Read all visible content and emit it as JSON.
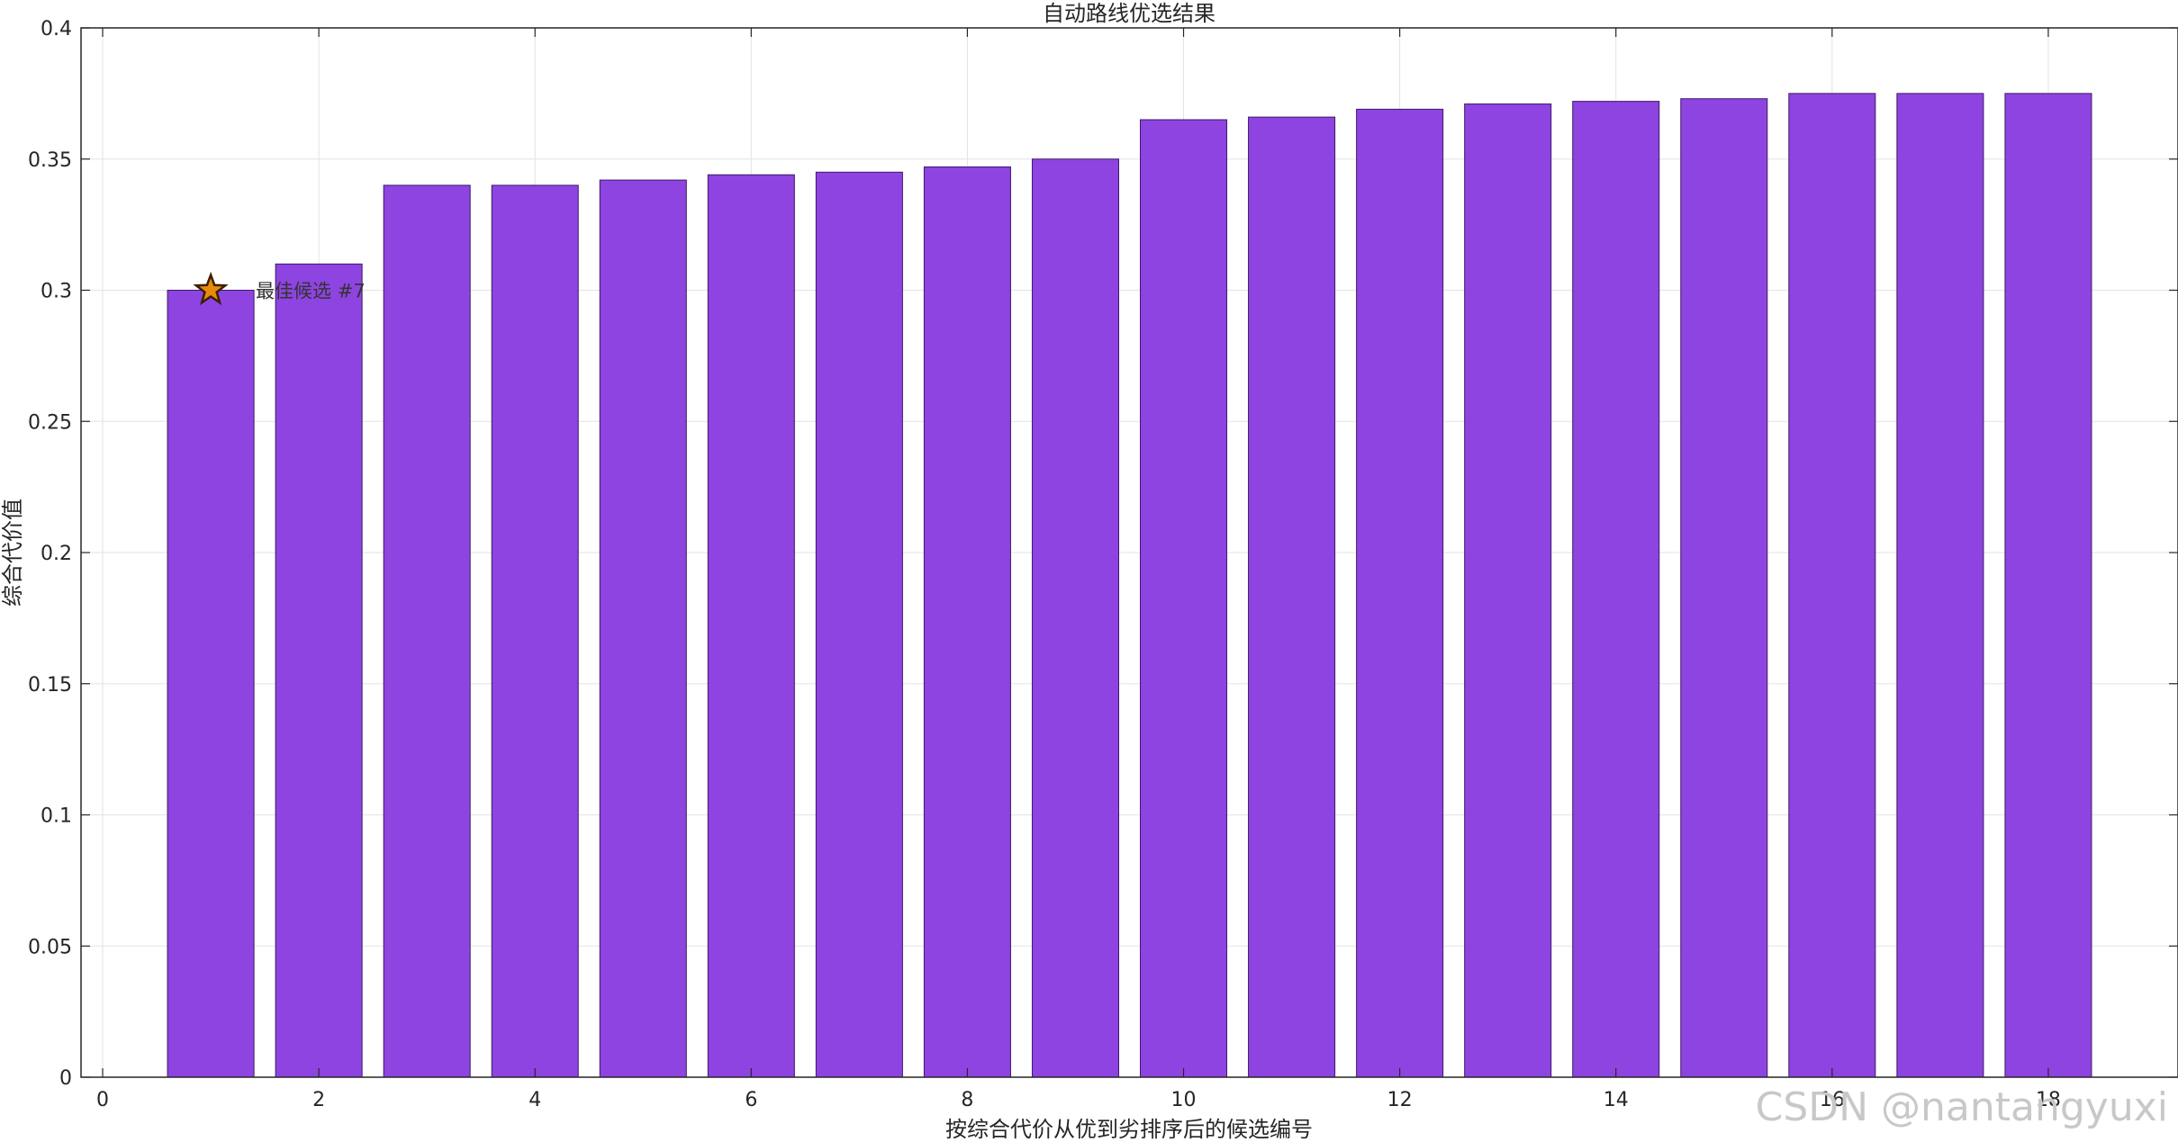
{
  "chart_data": {
    "type": "bar",
    "title": "自动路线优选结果",
    "xlabel": "按综合代价从优到劣排序后的候选编号",
    "ylabel": "综合代价值",
    "x": [
      1,
      2,
      3,
      4,
      5,
      6,
      7,
      8,
      9,
      10,
      11,
      12,
      13,
      14,
      15,
      16,
      17,
      18
    ],
    "values": [
      0.3,
      0.31,
      0.34,
      0.34,
      0.342,
      0.344,
      0.345,
      0.347,
      0.35,
      0.365,
      0.366,
      0.369,
      0.371,
      0.372,
      0.373,
      0.375,
      0.375,
      0.375
    ],
    "xlim": [
      -0.2,
      19.2
    ],
    "ylim": [
      0,
      0.4
    ],
    "xticks": [
      "0",
      "2",
      "4",
      "6",
      "8",
      "10",
      "12",
      "14",
      "16",
      "18"
    ],
    "yticks": [
      "0",
      "0.05",
      "0.1",
      "0.15",
      "0.2",
      "0.25",
      "0.3",
      "0.35",
      "0.4"
    ],
    "grid": true,
    "bar_color": "#8e44e0",
    "bar_edge_color": "#3d1a66",
    "marker": {
      "x": 1,
      "y": 0.3,
      "symbol": "star",
      "color": "#e88a0c",
      "label": "最佳候选 #7"
    }
  },
  "watermark": "CSDN @nantangyuxi"
}
